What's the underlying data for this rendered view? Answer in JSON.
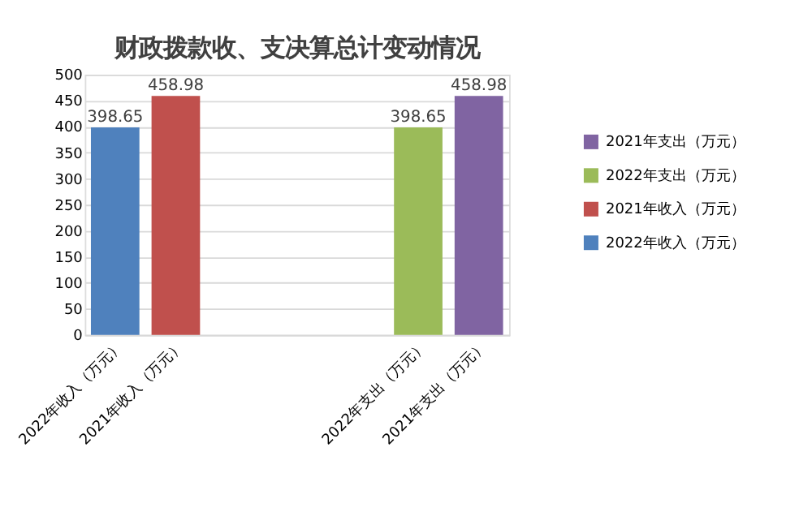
{
  "chart_data": {
    "type": "bar",
    "title": "财政拨款收、支决算总计变动情况",
    "categories": [
      "2022年收入（万元）",
      "2021年收入（万元）",
      null,
      null,
      null,
      "2022年支出（万元）",
      "2021年支出（万元）"
    ],
    "series": [
      {
        "name": "2022年收入（万元）",
        "color": "#4f81bd",
        "values": [
          398.65,
          null,
          null,
          null,
          null,
          null,
          null
        ]
      },
      {
        "name": "2021年收入（万元）",
        "color": "#c0504d",
        "values": [
          null,
          458.98,
          null,
          null,
          null,
          null,
          null
        ]
      },
      {
        "name": "2022年支出（万元）",
        "color": "#9bbb59",
        "values": [
          null,
          null,
          null,
          null,
          null,
          398.65,
          null
        ]
      },
      {
        "name": "2021年支出（万元）",
        "color": "#8064a2",
        "values": [
          null,
          null,
          null,
          null,
          null,
          null,
          458.98
        ]
      }
    ],
    "ylim": [
      0,
      500
    ],
    "yticks": [
      0,
      50,
      100,
      150,
      200,
      250,
      300,
      350,
      400,
      450,
      500
    ],
    "grid": "y",
    "legend": "right",
    "data_labels": true
  }
}
